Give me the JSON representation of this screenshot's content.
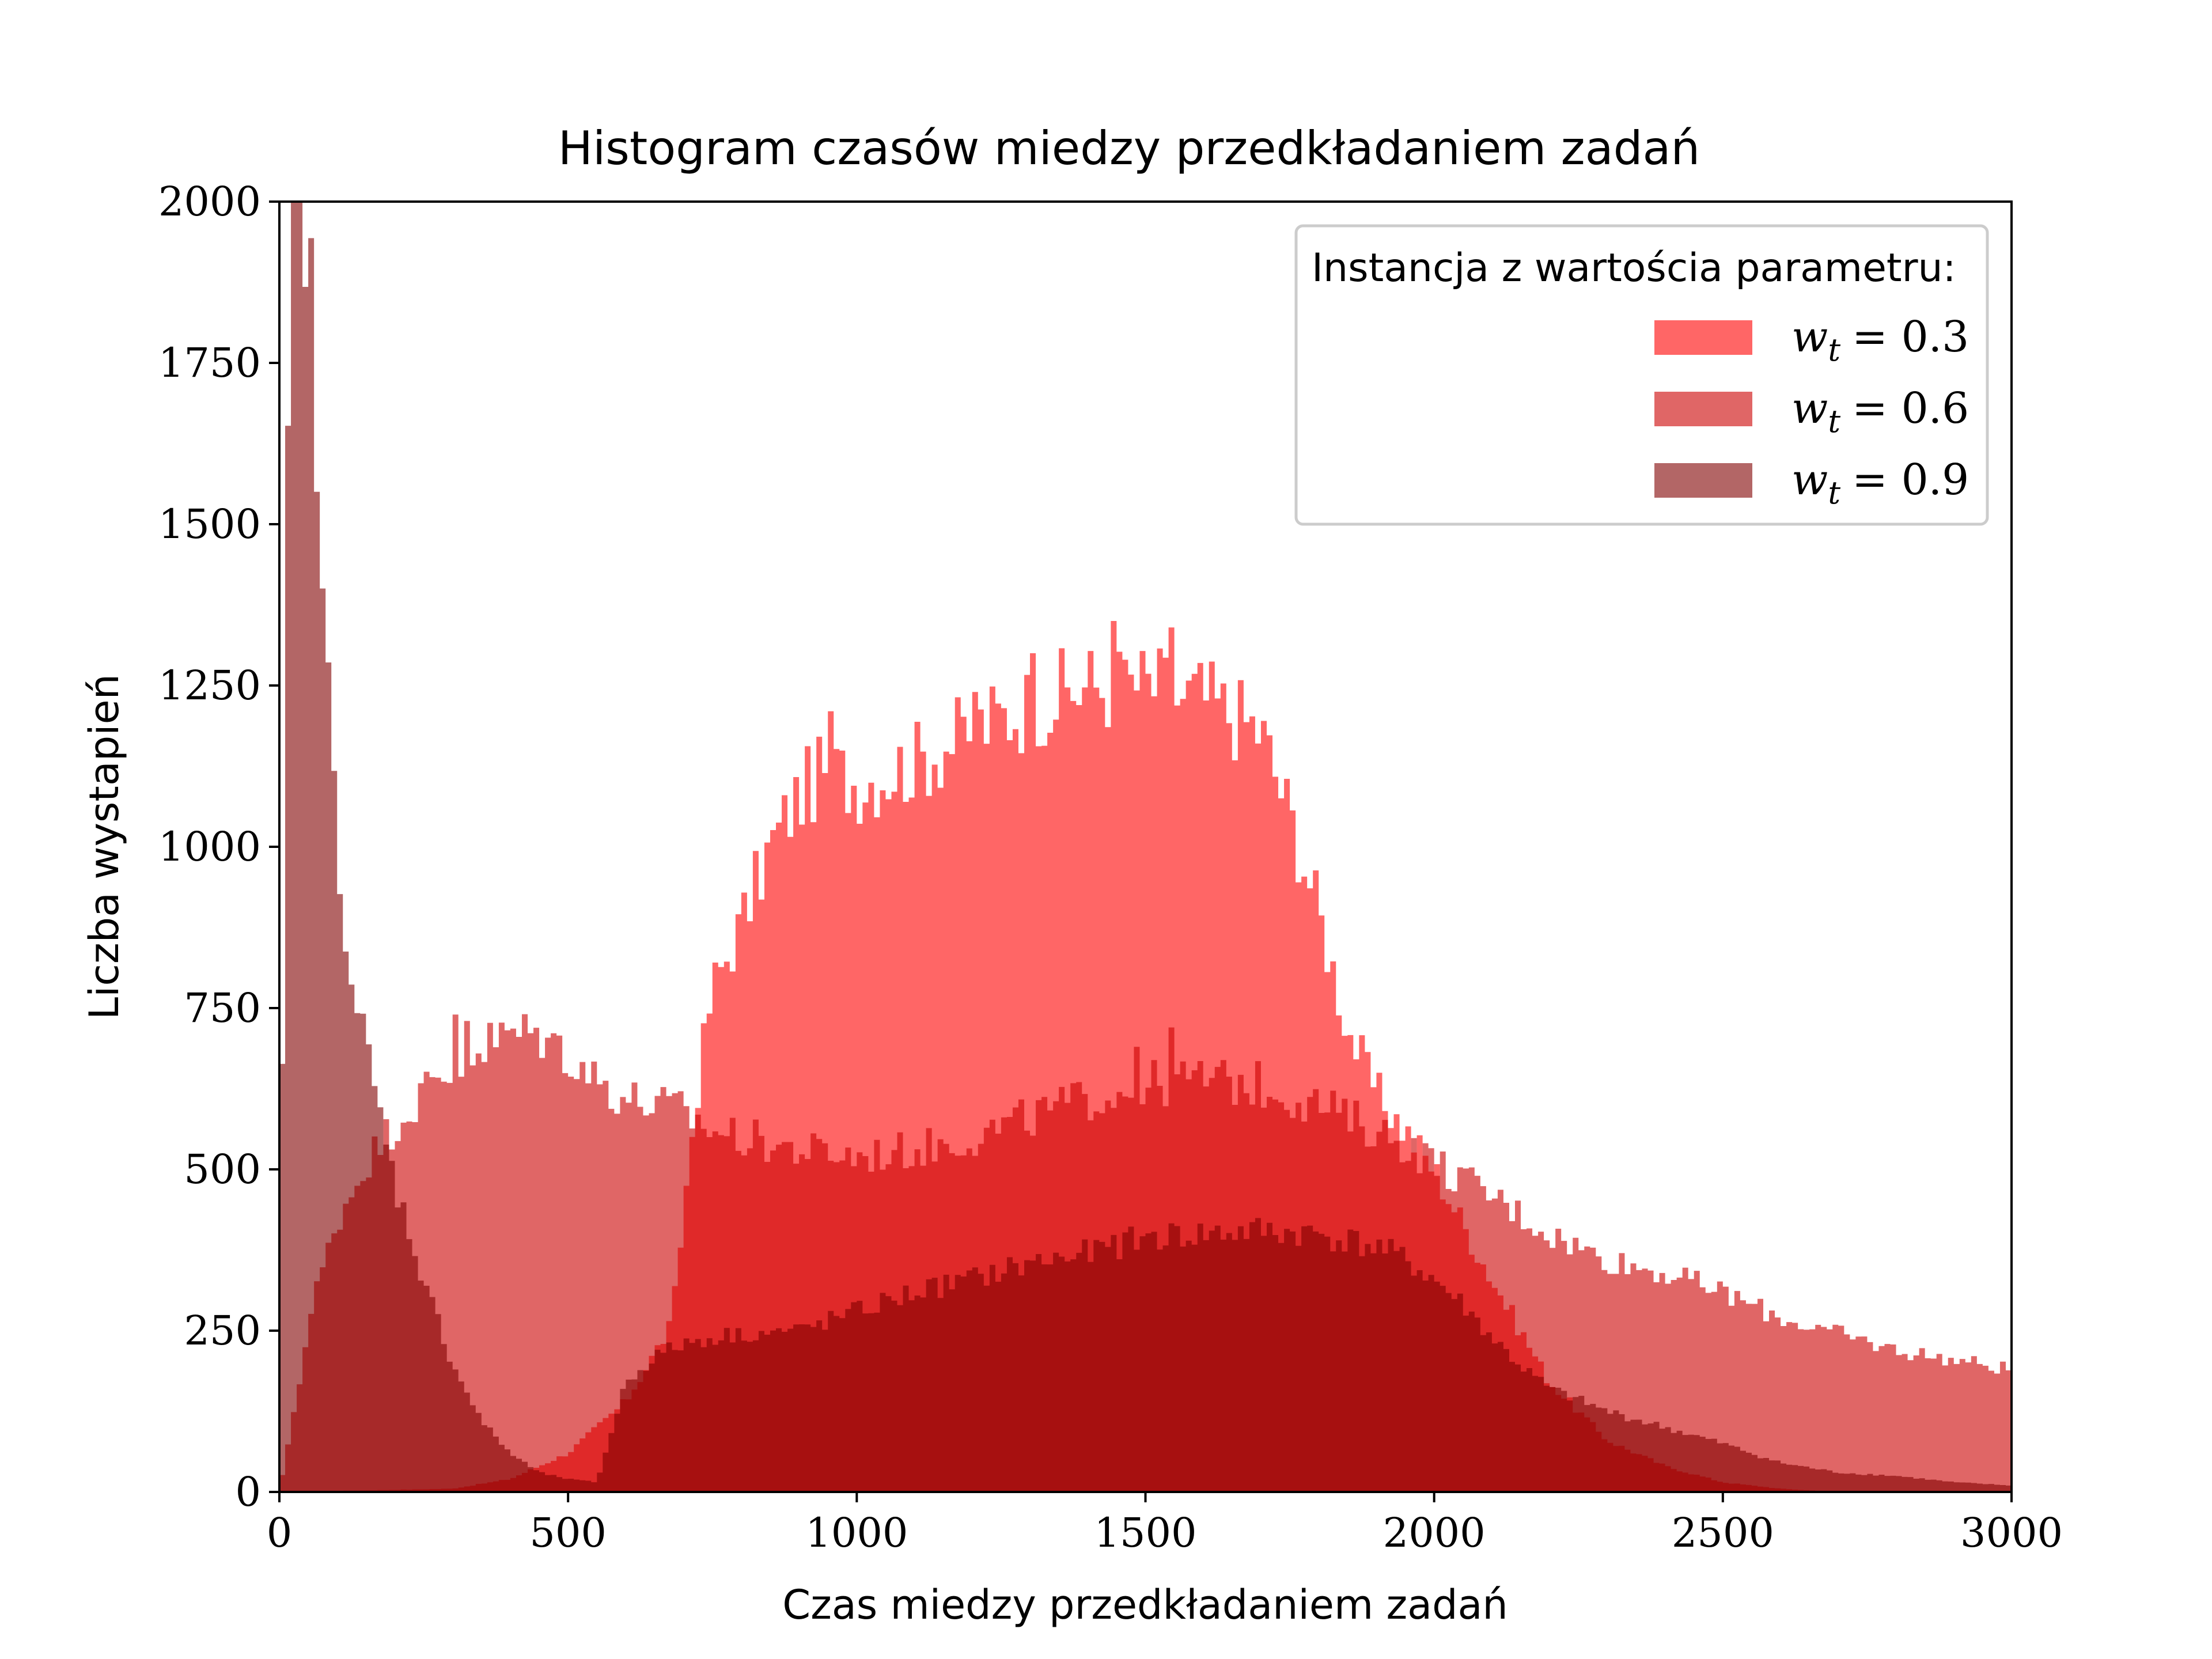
{
  "chart_data": {
    "type": "bar",
    "title": "Histogram czasów miedzy przedkładaniem zadań",
    "xlabel": "Czas miedzy przedkładaniem zadań",
    "ylabel": "Liczba wystapień",
    "xlim": [
      0,
      3000
    ],
    "ylim": [
      0,
      2000
    ],
    "x_ticks": [
      "0",
      "500",
      "1000",
      "1500",
      "2000",
      "2500",
      "3000"
    ],
    "y_ticks": [
      "0",
      "250",
      "500",
      "750",
      "1000",
      "1250",
      "1500",
      "1750",
      "2000"
    ],
    "grid": false,
    "bin_width": 10,
    "legend": {
      "title": "Instancja z wartościa parametru:",
      "placement": "top-right"
    },
    "series": [
      {
        "name": "w_t = 0.3",
        "label_var": "w",
        "label_sub": "t",
        "label_value": "= 0.3",
        "color": "#ff0000",
        "opacity": 0.6,
        "anchors": [
          [
            0,
            0
          ],
          [
            300,
            5
          ],
          [
            400,
            20
          ],
          [
            500,
            60
          ],
          [
            600,
            140
          ],
          [
            680,
            260
          ],
          [
            720,
            600
          ],
          [
            750,
            780
          ],
          [
            800,
            880
          ],
          [
            850,
            1000
          ],
          [
            900,
            1080
          ],
          [
            950,
            1120
          ],
          [
            1000,
            1100
          ],
          [
            1100,
            1130
          ],
          [
            1200,
            1180
          ],
          [
            1300,
            1220
          ],
          [
            1400,
            1250
          ],
          [
            1500,
            1250
          ],
          [
            1600,
            1230
          ],
          [
            1700,
            1180
          ],
          [
            1750,
            1050
          ],
          [
            1800,
            900
          ],
          [
            1850,
            720
          ],
          [
            1900,
            620
          ],
          [
            1950,
            560
          ],
          [
            2000,
            500
          ],
          [
            2100,
            330
          ],
          [
            2200,
            170
          ],
          [
            2300,
            80
          ],
          [
            2400,
            40
          ],
          [
            2500,
            15
          ],
          [
            2600,
            5
          ],
          [
            2700,
            0
          ],
          [
            3000,
            0
          ]
        ],
        "peaks": [
          [
            1440,
            1350
          ],
          [
            1540,
            1340
          ],
          [
            1460,
            1290
          ],
          [
            1300,
            1300
          ],
          [
            1200,
            1240
          ],
          [
            950,
            1210
          ]
        ]
      },
      {
        "name": "w_t = 0.6",
        "label_var": "w",
        "label_sub": "t",
        "label_value": "= 0.6",
        "color": "#cc0000",
        "opacity": 0.6,
        "anchors": [
          [
            0,
            0
          ],
          [
            30,
            150
          ],
          [
            60,
            300
          ],
          [
            100,
            420
          ],
          [
            150,
            510
          ],
          [
            200,
            570
          ],
          [
            250,
            620
          ],
          [
            300,
            650
          ],
          [
            350,
            690
          ],
          [
            400,
            710
          ],
          [
            450,
            710
          ],
          [
            500,
            680
          ],
          [
            550,
            640
          ],
          [
            600,
            610
          ],
          [
            650,
            600
          ],
          [
            700,
            590
          ],
          [
            750,
            560
          ],
          [
            800,
            550
          ],
          [
            900,
            530
          ],
          [
            1000,
            520
          ],
          [
            1100,
            530
          ],
          [
            1200,
            550
          ],
          [
            1300,
            580
          ],
          [
            1400,
            610
          ],
          [
            1500,
            630
          ],
          [
            1600,
            640
          ],
          [
            1700,
            630
          ],
          [
            1800,
            600
          ],
          [
            1850,
            580
          ],
          [
            1900,
            560
          ],
          [
            1950,
            540
          ],
          [
            2000,
            510
          ],
          [
            2100,
            460
          ],
          [
            2200,
            400
          ],
          [
            2300,
            360
          ],
          [
            2400,
            340
          ],
          [
            2500,
            310
          ],
          [
            2600,
            270
          ],
          [
            2700,
            245
          ],
          [
            2800,
            220
          ],
          [
            2900,
            205
          ],
          [
            3000,
            190
          ]
        ],
        "peaks": [
          [
            300,
            740
          ],
          [
            320,
            730
          ],
          [
            1540,
            720
          ],
          [
            1480,
            690
          ]
        ]
      },
      {
        "name": "w_t = 0.9",
        "label_var": "w",
        "label_sub": "t",
        "label_value": "= 0.9",
        "color": "#800000",
        "opacity": 0.6,
        "anchors": [
          [
            0,
            60
          ],
          [
            10,
            1200
          ],
          [
            20,
            2000
          ],
          [
            30,
            2000
          ],
          [
            40,
            2000
          ],
          [
            50,
            1950
          ],
          [
            60,
            1750
          ],
          [
            70,
            1450
          ],
          [
            80,
            1300
          ],
          [
            90,
            1160
          ],
          [
            100,
            1050
          ],
          [
            110,
            920
          ],
          [
            120,
            850
          ],
          [
            130,
            760
          ],
          [
            140,
            720
          ],
          [
            150,
            700
          ],
          [
            160,
            640
          ],
          [
            170,
            600
          ],
          [
            180,
            560
          ],
          [
            190,
            520
          ],
          [
            200,
            480
          ],
          [
            250,
            330
          ],
          [
            300,
            200
          ],
          [
            350,
            110
          ],
          [
            400,
            60
          ],
          [
            450,
            30
          ],
          [
            500,
            20
          ],
          [
            550,
            15
          ],
          [
            600,
            170
          ],
          [
            650,
            210
          ],
          [
            700,
            230
          ],
          [
            750,
            240
          ],
          [
            800,
            245
          ],
          [
            900,
            250
          ],
          [
            1000,
            280
          ],
          [
            1100,
            310
          ],
          [
            1200,
            330
          ],
          [
            1300,
            355
          ],
          [
            1400,
            370
          ],
          [
            1500,
            395
          ],
          [
            1600,
            400
          ],
          [
            1700,
            405
          ],
          [
            1800,
            400
          ],
          [
            1900,
            380
          ],
          [
            1950,
            360
          ],
          [
            2000,
            330
          ],
          [
            2050,
            290
          ],
          [
            2100,
            240
          ],
          [
            2150,
            195
          ],
          [
            2200,
            160
          ],
          [
            2300,
            125
          ],
          [
            2400,
            100
          ],
          [
            2500,
            75
          ],
          [
            2600,
            45
          ],
          [
            2700,
            30
          ],
          [
            2800,
            25
          ],
          [
            2900,
            15
          ],
          [
            3000,
            10
          ]
        ],
        "peaks": []
      }
    ]
  }
}
